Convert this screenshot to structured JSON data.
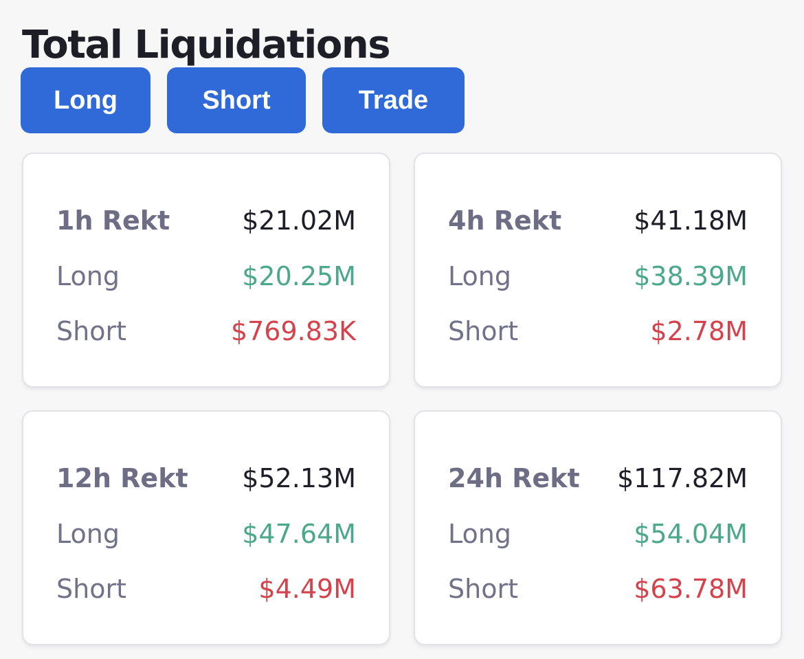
{
  "title": "Total Liquidations",
  "buttons": {
    "long": "Long",
    "short": "Short",
    "trade": "Trade"
  },
  "cards": [
    {
      "period": "1h Rekt",
      "total": "$21.02M",
      "long_label": "Long",
      "long_value": "$20.25M",
      "short_label": "Short",
      "short_value": "$769.83K"
    },
    {
      "period": "4h Rekt",
      "total": "$41.18M",
      "long_label": "Long",
      "long_value": "$38.39M",
      "short_label": "Short",
      "short_value": "$2.78M"
    },
    {
      "period": "12h Rekt",
      "total": "$52.13M",
      "long_label": "Long",
      "long_value": "$47.64M",
      "short_label": "Short",
      "short_value": "$4.49M"
    },
    {
      "period": "24h Rekt",
      "total": "$117.82M",
      "long_label": "Long",
      "long_value": "$54.04M",
      "short_label": "Short",
      "short_value": "$63.78M"
    }
  ],
  "colors": {
    "accent": "#2f6ad8",
    "long": "#4ba88b",
    "short": "#d6424c",
    "text": "#1e1e26",
    "muted": "#72718a"
  }
}
